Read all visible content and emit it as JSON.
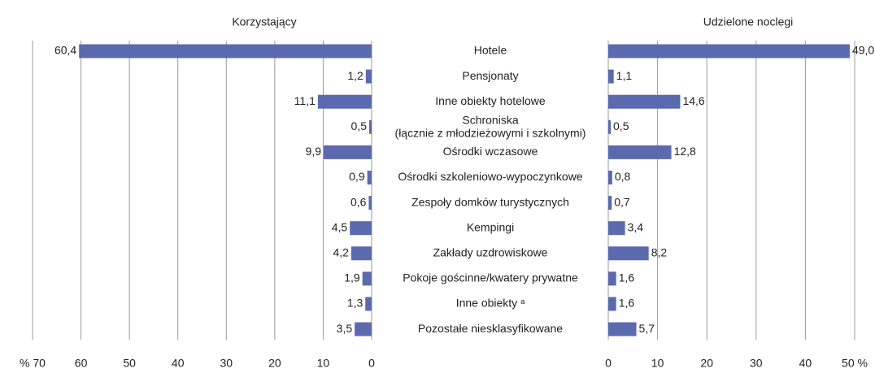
{
  "chart_data": [
    {
      "type": "bar",
      "orientation": "horizontal",
      "title": "Korzystający",
      "color": "#5b6aae",
      "categories": [
        "Hotele",
        "Pensjonaty",
        "Inne obiekty hotelowe",
        "Schroniska\n(łącznie z młodzieżowymi i szkolnymi)",
        "Ośrodki wczasowe",
        "Ośrodki szkoleniowo-wypoczynkowe",
        "Zespoły domków turystycznych",
        "Kempingi",
        "Zakłady uzdrowiskowe",
        "Pokoje gościnne/kwatery prywatne",
        "Inne obiekty ᵃ",
        "Pozostałe niesklasyfikowane"
      ],
      "values": [
        60.4,
        1.2,
        11.1,
        0.5,
        9.9,
        0.9,
        0.6,
        4.5,
        4.2,
        1.9,
        1.3,
        3.5
      ],
      "value_labels": [
        "60,4",
        "1,2",
        "11,1",
        "0,5",
        "9,9",
        "0,9",
        "0,6",
        "4,5",
        "4,2",
        "1,9",
        "1,3",
        "3,5"
      ],
      "xlim": [
        70,
        0
      ],
      "xticks": [
        {
          "value": 70,
          "label": "% 70"
        },
        60,
        50,
        40,
        30,
        20,
        10,
        0
      ],
      "grid": true
    },
    {
      "type": "bar",
      "orientation": "horizontal",
      "title": "Udzielone noclegi",
      "color": "#5b6aae",
      "values": [
        49.0,
        1.1,
        14.6,
        0.5,
        12.8,
        0.8,
        0.7,
        3.4,
        8.2,
        1.6,
        1.6,
        5.7
      ],
      "value_labels": [
        "49,0",
        "1,1",
        "14,6",
        "0,5",
        "12,8",
        "0,8",
        "0,7",
        "3,4",
        "8,2",
        "1,6",
        "1,6",
        "5,7"
      ],
      "xlim": [
        0,
        50
      ],
      "xticks": [
        0,
        10,
        20,
        30,
        40,
        {
          "value": 50,
          "label": "50 %"
        }
      ],
      "grid": true
    }
  ]
}
